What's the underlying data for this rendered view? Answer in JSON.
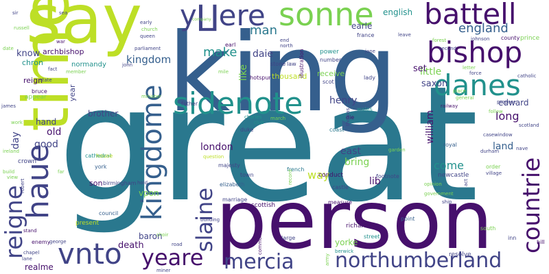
{
  "palette": {
    "purple": "#46106c",
    "indigo": "#414487",
    "blue": "#355f8d",
    "teal": "#2a788e",
    "cyan": "#21918c",
    "sea": "#22a884",
    "green": "#44bf70",
    "lime": "#7ad151",
    "yellow": "#bddf26"
  },
  "words": [
    {
      "text": "great",
      "color": "#2a788e"
    },
    {
      "text": "king",
      "color": "#355f8d"
    },
    {
      "text": "person",
      "color": "#46106c"
    },
    {
      "text": "say",
      "color": "#bddf26"
    },
    {
      "text": "time",
      "color": "#bddf26"
    },
    {
      "text": "y∐ere",
      "color": "#414487"
    },
    {
      "text": "sonne",
      "color": "#7ad151"
    },
    {
      "text": "battell",
      "color": "#46106c"
    },
    {
      "text": "bishop",
      "color": "#46106c"
    },
    {
      "text": "danes",
      "color": "#21918c"
    },
    {
      "text": "sidenote",
      "color": "#21918c"
    },
    {
      "text": "haue",
      "color": "#414487"
    },
    {
      "text": "kingdome",
      "color": "#355f8d"
    },
    {
      "text": "reigne",
      "color": "#414487"
    },
    {
      "text": "vnto",
      "color": "#414487"
    },
    {
      "text": "yeare",
      "color": "#46106c"
    },
    {
      "text": "mercia",
      "color": "#414487"
    },
    {
      "text": "northumberland",
      "color": "#414487"
    },
    {
      "text": "countrie",
      "color": "#46106c"
    },
    {
      "text": "slaine",
      "color": "#414487"
    },
    {
      "text": "england",
      "color": "#355f8d"
    },
    {
      "text": "man",
      "color": "#2a788e"
    },
    {
      "text": "make",
      "color": "#21918c"
    },
    {
      "text": "kingdom",
      "color": "#355f8d"
    },
    {
      "text": "know",
      "color": "#414487"
    },
    {
      "text": "archbishop",
      "color": "#46106c"
    },
    {
      "text": "english",
      "color": "#21918c"
    },
    {
      "text": "earle",
      "color": "#414487"
    },
    {
      "text": "daie",
      "color": "#414487"
    },
    {
      "text": "like",
      "color": "#7ad151"
    },
    {
      "text": "chron",
      "color": "#21918c"
    },
    {
      "text": "normandy",
      "color": "#21918c"
    },
    {
      "text": "reign",
      "color": "#46106c"
    },
    {
      "text": "appear",
      "color": "#7ad151"
    },
    {
      "text": "little",
      "color": "#7ad151"
    },
    {
      "text": "set",
      "color": "#46106c"
    },
    {
      "text": "saxon",
      "color": "#414487"
    },
    {
      "text": "edward",
      "color": "#414487"
    },
    {
      "text": "long",
      "color": "#46106c"
    },
    {
      "text": "william",
      "color": "#46106c"
    },
    {
      "text": "land",
      "color": "#355f8d"
    },
    {
      "text": "come",
      "color": "#21918c"
    },
    {
      "text": "bring",
      "color": "#7ad151"
    },
    {
      "text": "way",
      "color": "#bddf26"
    },
    {
      "text": "lib",
      "color": "#46106c"
    },
    {
      "text": "east",
      "color": "#414487"
    },
    {
      "text": "london",
      "color": "#46106c"
    },
    {
      "text": "henry",
      "color": "#414487"
    },
    {
      "text": "receive",
      "color": "#7ad151"
    },
    {
      "text": "thousand",
      "color": "#bddf26"
    },
    {
      "text": "brother",
      "color": "#414487"
    },
    {
      "text": "hand",
      "color": "#414487"
    },
    {
      "text": "old",
      "color": "#46106c"
    },
    {
      "text": "good",
      "color": "#414487"
    },
    {
      "text": "day",
      "color": "#414487"
    },
    {
      "text": "year",
      "color": "#414487"
    },
    {
      "text": "son",
      "color": "#46106c"
    },
    {
      "text": "vpon",
      "color": "#7ad151"
    },
    {
      "text": "baron",
      "color": "#414487"
    },
    {
      "text": "death",
      "color": "#46106c"
    },
    {
      "text": "realme",
      "color": "#46106c"
    },
    {
      "text": "yorke",
      "color": "#7ad151"
    },
    {
      "text": "scottish",
      "color": "#46106c"
    },
    {
      "text": "conduct",
      "color": "#46106c"
    },
    {
      "text": "newcastle",
      "color": "#414487"
    },
    {
      "text": "present",
      "color": "#bddf26"
    },
    {
      "text": "marriage",
      "color": "#414487"
    },
    {
      "text": "elizabeth",
      "color": "#355f8d"
    },
    {
      "text": "majesty",
      "color": "#414487"
    },
    {
      "text": "question",
      "color": "#bddf26"
    },
    {
      "text": "birmingham",
      "color": "#414487"
    },
    {
      "text": "council",
      "color": "#355f8d"
    },
    {
      "text": "york",
      "color": "#355f8d"
    },
    {
      "text": "cathedral",
      "color": "#21918c"
    },
    {
      "text": "house",
      "color": "#bddf26"
    },
    {
      "text": "crown",
      "color": "#414487"
    },
    {
      "text": "richard",
      "color": "#46106c"
    },
    {
      "text": "street",
      "color": "#21918c"
    },
    {
      "text": "berwick",
      "color": "#21918c"
    },
    {
      "text": "resolve",
      "color": "#414487"
    },
    {
      "text": "south",
      "color": "#7ad151"
    },
    {
      "text": "inn",
      "color": "#414487"
    },
    {
      "text": "hill",
      "color": "#46106c"
    },
    {
      "text": "point",
      "color": "#355f8d"
    },
    {
      "text": "measure",
      "color": "#46106c"
    },
    {
      "text": "castle",
      "color": "#414487"
    },
    {
      "text": "footnote",
      "color": "#414487"
    },
    {
      "text": "french",
      "color": "#2a788e"
    },
    {
      "text": "town",
      "color": "#414487"
    },
    {
      "text": "coast",
      "color": "#2a788e"
    },
    {
      "text": "die",
      "color": "#46106c"
    },
    {
      "text": "wales",
      "color": "#21918c"
    },
    {
      "text": "thomas",
      "color": "#414487"
    },
    {
      "text": "duke",
      "color": "#414487"
    },
    {
      "text": "club",
      "color": "#21918c"
    },
    {
      "text": "march",
      "color": "#7ad151"
    },
    {
      "text": "charles",
      "color": "#21918c"
    },
    {
      "text": "father",
      "color": "#414487"
    },
    {
      "text": "scot",
      "color": "#414487"
    },
    {
      "text": "lady",
      "color": "#414487"
    },
    {
      "text": "number",
      "color": "#414487"
    },
    {
      "text": "power",
      "color": "#21918c"
    },
    {
      "text": "illustration",
      "color": "#46106c"
    },
    {
      "text": "stone",
      "color": "#414487"
    },
    {
      "text": "law",
      "color": "#414487"
    },
    {
      "text": "hotspur",
      "color": "#46106c"
    },
    {
      "text": "mile",
      "color": "#7ad151"
    },
    {
      "text": "earl",
      "color": "#46106c"
    },
    {
      "text": "north",
      "color": "#414487"
    },
    {
      "text": "end",
      "color": "#414487"
    },
    {
      "text": "company",
      "color": "#7ad151"
    },
    {
      "text": "france",
      "color": "#414487"
    },
    {
      "text": "jane",
      "color": "#414487"
    },
    {
      "text": "leave",
      "color": "#414487"
    },
    {
      "text": "county",
      "color": "#46106c"
    },
    {
      "text": "prince",
      "color": "#7ad151"
    },
    {
      "text": "johnson",
      "color": "#414487"
    },
    {
      "text": "second",
      "color": "#414487"
    },
    {
      "text": "forest",
      "color": "#7ad151"
    },
    {
      "text": "catholic",
      "color": "#414487"
    },
    {
      "text": "letter",
      "color": "#7ad151"
    },
    {
      "text": "force",
      "color": "#414487"
    },
    {
      "text": "place",
      "color": "#7ad151"
    },
    {
      "text": "general",
      "color": "#7ad151"
    },
    {
      "text": "railway",
      "color": "#46106c"
    },
    {
      "text": "propose",
      "color": "#414487"
    },
    {
      "text": "follow",
      "color": "#7ad151"
    },
    {
      "text": "scotland",
      "color": "#414487"
    },
    {
      "text": "royal",
      "color": "#355f8d"
    },
    {
      "text": "case",
      "color": "#414487"
    },
    {
      "text": "window",
      "color": "#414487"
    },
    {
      "text": "nave",
      "color": "#414487"
    },
    {
      "text": "durham",
      "color": "#414487"
    },
    {
      "text": "order",
      "color": "#7ad151"
    },
    {
      "text": "village",
      "color": "#414487"
    },
    {
      "text": "opinion",
      "color": "#7ad151"
    },
    {
      "text": "act",
      "color": "#414487"
    },
    {
      "text": "government",
      "color": "#7ad151"
    },
    {
      "text": "ship",
      "color": "#414487"
    },
    {
      "text": "garden",
      "color": "#7ad151"
    },
    {
      "text": "record",
      "color": "#7ad151"
    },
    {
      "text": "early",
      "color": "#414487"
    },
    {
      "text": "church",
      "color": "#7ad151"
    },
    {
      "text": "queen",
      "color": "#414487"
    },
    {
      "text": "parliament",
      "color": "#414487"
    },
    {
      "text": "war",
      "color": "#46106c"
    },
    {
      "text": "john",
      "color": "#414487"
    },
    {
      "text": "member",
      "color": "#7ad151"
    },
    {
      "text": "fact",
      "color": "#414487"
    },
    {
      "text": "state",
      "color": "#414487"
    },
    {
      "text": "bruce",
      "color": "#46106c"
    },
    {
      "text": "james",
      "color": "#414487"
    },
    {
      "text": "work",
      "color": "#7ad151"
    },
    {
      "text": "ireland",
      "color": "#7ad151"
    },
    {
      "text": "build",
      "color": "#7ad151"
    },
    {
      "text": "view",
      "color": "#7ad151"
    },
    {
      "text": "far",
      "color": "#7ad151"
    },
    {
      "text": "robert",
      "color": "#414487"
    },
    {
      "text": "stand",
      "color": "#46106c"
    },
    {
      "text": "enemy",
      "color": "#46106c"
    },
    {
      "text": "george",
      "color": "#414487"
    },
    {
      "text": "chapel",
      "color": "#414487"
    },
    {
      "text": "lane",
      "color": "#414487"
    },
    {
      "text": "choir",
      "color": "#7ad151"
    },
    {
      "text": "road",
      "color": "#414487"
    },
    {
      "text": "building",
      "color": "#414487"
    },
    {
      "text": "miner",
      "color": "#414487"
    },
    {
      "text": "minister",
      "color": "#7ad151"
    },
    {
      "text": "hold",
      "color": "#414487"
    },
    {
      "text": "army",
      "color": "#7ad151"
    },
    {
      "text": "common",
      "color": "#46106c"
    },
    {
      "text": "large",
      "color": "#414487"
    },
    {
      "text": "sir",
      "color": "#414487"
    },
    {
      "text": "sea",
      "color": "#414487"
    },
    {
      "text": "russell",
      "color": "#7ad151"
    },
    {
      "text": "date",
      "color": "#7ad151"
    }
  ]
}
